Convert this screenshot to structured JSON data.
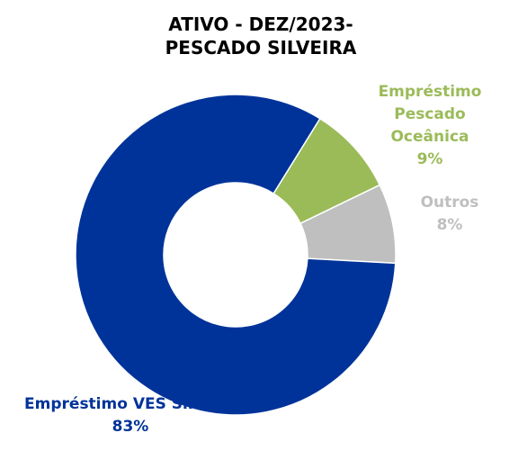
{
  "chart_data": {
    "type": "donut",
    "title": "ATIVO - DEZ/2023- PESCADO SILVEIRA",
    "categories": [
      "Empréstimo Pescado Oceânica",
      "Outros",
      "Empréstimo VES Silveira"
    ],
    "values": [
      9,
      8,
      83
    ],
    "value_labels": [
      "9%",
      "8%",
      "83%"
    ],
    "colors": [
      "#9bbb59",
      "#bfbfbf",
      "#003399"
    ]
  }
}
